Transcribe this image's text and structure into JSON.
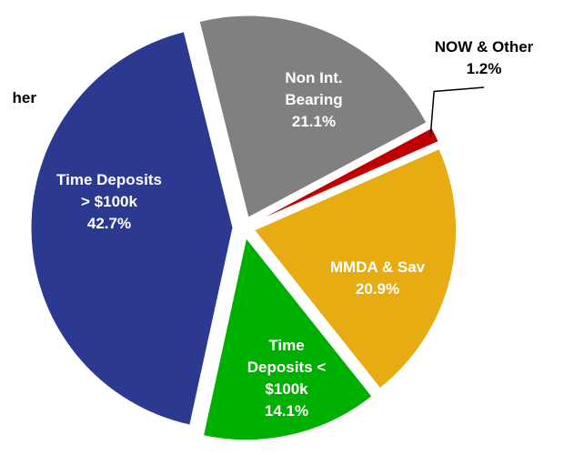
{
  "chart_data": {
    "type": "pie",
    "categories": [
      "Non Int. Bearing",
      "NOW & Other",
      "MMDA  & Sav",
      "Time Deposits < $100k",
      "Time Deposits > $100k"
    ],
    "values": [
      21.1,
      1.2,
      20.9,
      14.1,
      42.7
    ],
    "value_labels": [
      "21.1%",
      "1.2%",
      "20.9%",
      "14.1%",
      "42.7%"
    ],
    "colors": [
      "#808080",
      "#c00000",
      "#e6ac12",
      "#00b000",
      "#2b3990"
    ],
    "annotations": [
      "her"
    ]
  }
}
